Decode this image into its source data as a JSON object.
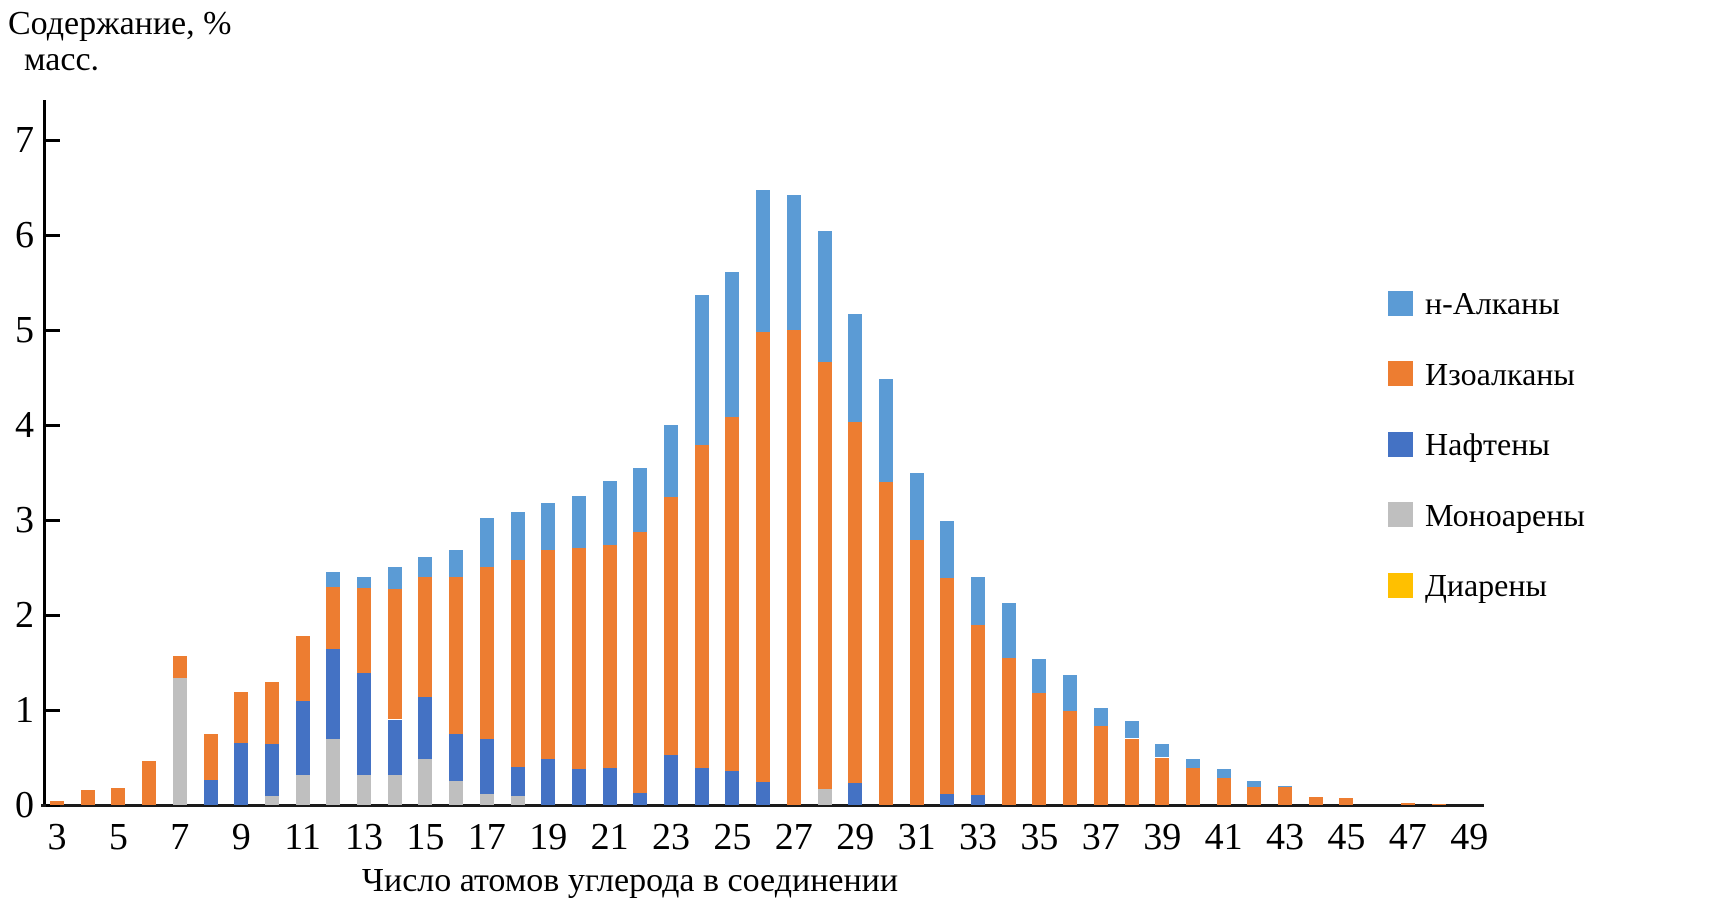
{
  "figure": {
    "y_axis_title_line1": "Содержание, %",
    "y_axis_title_line2": "масс.",
    "x_axis_title": "Число атомов углерода в соединении"
  },
  "chart_data": {
    "type": "bar",
    "stacked": true,
    "title": "",
    "xlabel": "Число атомов углерода в соединении",
    "ylabel": "Содержание, % масс.",
    "ylim": [
      0,
      7
    ],
    "y_ticks": [
      0,
      1,
      2,
      3,
      4,
      5,
      6,
      7
    ],
    "grid": false,
    "legend_position": "right",
    "x": [
      3,
      4,
      5,
      6,
      7,
      8,
      9,
      10,
      11,
      12,
      13,
      14,
      15,
      16,
      17,
      18,
      19,
      20,
      21,
      22,
      23,
      24,
      25,
      26,
      27,
      28,
      29,
      30,
      31,
      32,
      33,
      34,
      35,
      36,
      37,
      38,
      39,
      40,
      41,
      42,
      43,
      44,
      45,
      46,
      47,
      48,
      49
    ],
    "x_tick_labels": [
      3,
      5,
      7,
      9,
      11,
      13,
      15,
      17,
      19,
      21,
      23,
      25,
      27,
      29,
      31,
      33,
      35,
      37,
      39,
      41,
      43,
      45,
      47,
      49
    ],
    "series": [
      {
        "name": "Диарены",
        "color": "#FFC000",
        "values": [
          0,
          0,
          0,
          0,
          0,
          0,
          0,
          0,
          0,
          0,
          0,
          0,
          0,
          0,
          0,
          0,
          0,
          0,
          0,
          0,
          0,
          0,
          0,
          0,
          0,
          0,
          0,
          0,
          0,
          0,
          0,
          0,
          0,
          0,
          0,
          0,
          0,
          0,
          0,
          0,
          0,
          0,
          0,
          0,
          0,
          0,
          0
        ]
      },
      {
        "name": "Моноарены",
        "color": "#BFBFBF",
        "values": [
          0,
          0,
          0,
          0,
          1.34,
          0,
          0,
          0.09,
          0.32,
          0.69,
          0.32,
          0.32,
          0.48,
          0.25,
          0.12,
          0.09,
          0,
          0,
          0,
          0,
          0,
          0,
          0,
          0,
          0,
          0.17,
          0,
          0,
          0,
          0,
          0,
          0,
          0,
          0,
          0,
          0,
          0,
          0,
          0,
          0,
          0,
          0,
          0,
          0,
          0,
          0,
          0
        ]
      },
      {
        "name": "Нафтены",
        "color": "#4472C4",
        "values": [
          0,
          0,
          0,
          0,
          0,
          0.26,
          0.65,
          0.55,
          0.77,
          0.95,
          1.07,
          0.58,
          0.66,
          0.5,
          0.57,
          0.31,
          0.48,
          0.38,
          0.39,
          0.13,
          0.53,
          0.39,
          0.36,
          0.24,
          0,
          0,
          0.23,
          0,
          0,
          0.12,
          0.11,
          0,
          0,
          0,
          0,
          0,
          0,
          0,
          0,
          0,
          0,
          0,
          0,
          0,
          0,
          0,
          0
        ]
      },
      {
        "name": "Изоалканы",
        "color": "#ED7D31",
        "values": [
          0.04,
          0.16,
          0.18,
          0.46,
          0.23,
          0.49,
          0.54,
          0.66,
          0.69,
          0.65,
          0.89,
          1.37,
          1.26,
          1.65,
          1.82,
          2.18,
          2.2,
          2.33,
          2.35,
          2.74,
          2.71,
          3.4,
          3.72,
          4.74,
          5.0,
          4.49,
          3.8,
          3.4,
          2.79,
          2.27,
          1.79,
          1.55,
          1.18,
          0.99,
          0.83,
          0.7,
          0.5,
          0.39,
          0.28,
          0.19,
          0.19,
          0.08,
          0.07,
          0,
          0.02,
          0.01,
          0
        ]
      },
      {
        "name": "н-Алканы",
        "color": "#5B9BD5",
        "values": [
          0,
          0,
          0,
          0,
          0,
          0,
          0,
          0,
          0,
          0.16,
          0.12,
          0.24,
          0.21,
          0.28,
          0.51,
          0.5,
          0.5,
          0.54,
          0.67,
          0.68,
          0.76,
          1.58,
          1.53,
          1.49,
          1.42,
          1.38,
          1.14,
          1.08,
          0.71,
          0.6,
          0.5,
          0.58,
          0.36,
          0.38,
          0.19,
          0.18,
          0.14,
          0.09,
          0.1,
          0.06,
          0.01,
          0,
          0,
          0,
          0,
          0,
          0
        ]
      }
    ],
    "legend_order": [
      "н-Алканы",
      "Изоалканы",
      "Нафтены",
      "Моноарены",
      "Диарены"
    ]
  }
}
